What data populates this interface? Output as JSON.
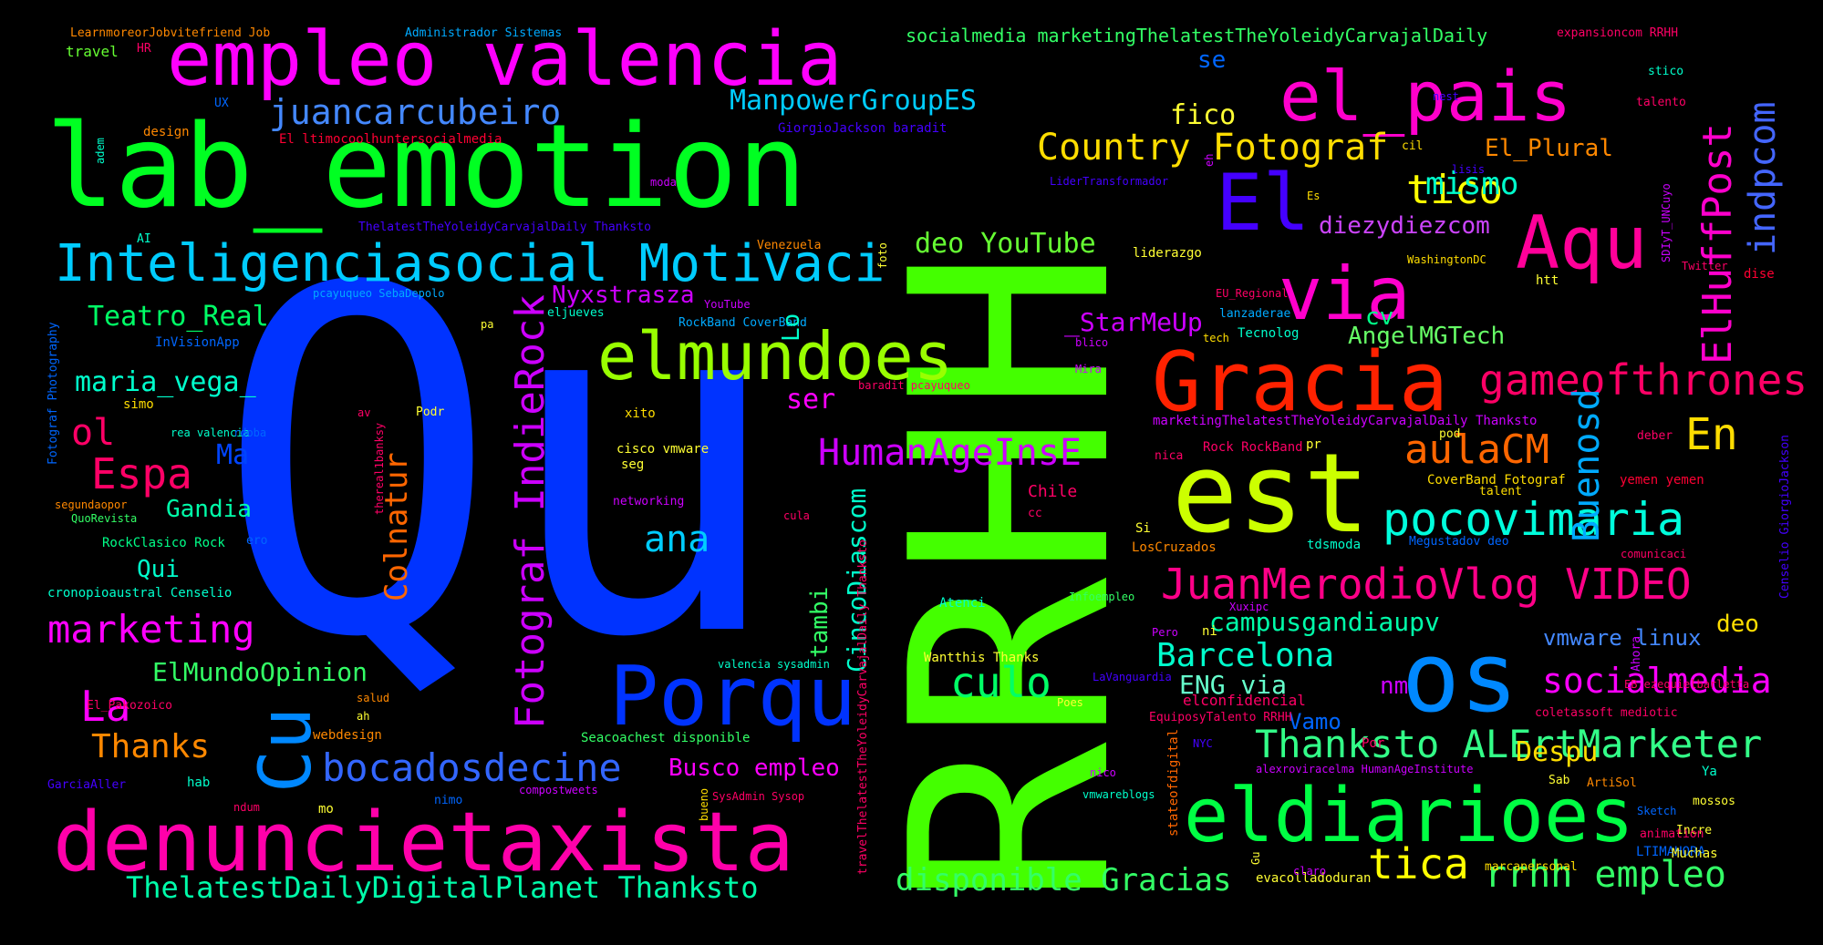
{
  "words": [
    {
      "t": "Qu",
      "c": "#0033ff"
    },
    {
      "t": "RRHH",
      "c": "#44ff00"
    },
    {
      "t": "lab_emotion",
      "c": "#00ff22"
    },
    {
      "t": "empleo valencia",
      "c": "#ff00ff"
    },
    {
      "t": "denuncietaxista",
      "c": "#ff00aa"
    },
    {
      "t": "Inteligenciasocial Motivaci",
      "c": "#00ccff"
    },
    {
      "t": "elmundoes",
      "c": "#99ff00"
    },
    {
      "t": "Porqu",
      "c": "#0033ff"
    },
    {
      "t": "juancarcubeiro",
      "c": "#4488ff"
    },
    {
      "t": "el_pais",
      "c": "#ff00cc"
    },
    {
      "t": "El",
      "c": "#4400ff"
    },
    {
      "t": "Aqu",
      "c": "#ff0099"
    },
    {
      "t": "via",
      "c": "#ff00cc"
    },
    {
      "t": "Gracia",
      "c": "#ff2200"
    },
    {
      "t": "est",
      "c": "#ccff00"
    },
    {
      "t": "os",
      "c": "#0088ff"
    },
    {
      "t": "eldiarioes",
      "c": "#00ff44"
    },
    {
      "t": "gameofthrones",
      "c": "#ff0066"
    },
    {
      "t": "pocovimaria",
      "c": "#00ffdd"
    },
    {
      "t": "JuanMerodioVlog VIDEO",
      "c": "#ff0088"
    },
    {
      "t": "aulaCM",
      "c": "#ff6600"
    },
    {
      "t": "En",
      "c": "#ffdd00"
    },
    {
      "t": "Thanksto ALErtMarketer",
      "c": "#33ff88"
    },
    {
      "t": "socialmedia",
      "c": "#ff00ff"
    },
    {
      "t": "Barcelona",
      "c": "#00ffcc"
    },
    {
      "t": "ENG via",
      "c": "#66ffcc"
    },
    {
      "t": "culo",
      "c": "#00ff66"
    },
    {
      "t": "disponible Gracias",
      "c": "#33ff66"
    },
    {
      "t": "tica",
      "c": "#ffff00"
    },
    {
      "t": "rrhh empleo",
      "c": "#33ff66"
    },
    {
      "t": "bocadosdecine",
      "c": "#3366ff"
    },
    {
      "t": "ThelatestDailyDigitalPlanet Thanksto",
      "c": "#00ffaa"
    },
    {
      "t": "marketing",
      "c": "#ff00ff"
    },
    {
      "t": "Espa",
      "c": "#ff0066"
    },
    {
      "t": "La",
      "c": "#ff00ff"
    },
    {
      "t": "Thanks",
      "c": "#ff8800"
    },
    {
      "t": "ana",
      "c": "#00ccff"
    },
    {
      "t": "HumanAgeInsE",
      "c": "#cc00ff"
    },
    {
      "t": "Country Fotograf",
      "c": "#ffdd00"
    },
    {
      "t": "ManpowerGroupES",
      "c": "#00ccff"
    },
    {
      "t": "tico",
      "c": "#ffff00"
    },
    {
      "t": "mismo",
      "c": "#00ffcc"
    },
    {
      "t": "deo YouTube",
      "c": "#66ff33"
    },
    {
      "t": "fico",
      "c": "#ffff33"
    },
    {
      "t": "El_Plural",
      "c": "#ff8800"
    },
    {
      "t": "diezydiezcom",
      "c": "#cc44ff"
    },
    {
      "t": "Teatro_Real",
      "c": "#00ff66"
    },
    {
      "t": "maria_vega_",
      "c": "#00ffcc"
    },
    {
      "t": "ol",
      "c": "#ff0066"
    },
    {
      "t": "Ma",
      "c": "#0044ff"
    },
    {
      "t": "Gandia",
      "c": "#00ffaa"
    },
    {
      "t": "Qui",
      "c": "#00ffcc"
    },
    {
      "t": "ElMundoOpinion",
      "c": "#33ff66"
    },
    {
      "t": "Busco empleo",
      "c": "#ff00ff"
    },
    {
      "t": "campusgandiaupv",
      "c": "#00ffaa"
    },
    {
      "t": "vmware linux",
      "c": "#4488ff"
    },
    {
      "t": "deo",
      "c": "#ffdd00"
    },
    {
      "t": "Despu",
      "c": "#ffdd00"
    },
    {
      "t": "AngelMGTech",
      "c": "#66ff66"
    },
    {
      "t": "ser",
      "c": "#ff00ff"
    },
    {
      "t": "_StarMeUp",
      "c": "#cc00ff"
    },
    {
      "t": "Nyxstrasza",
      "c": "#cc00ff"
    },
    {
      "t": "se",
      "c": "#0066ff"
    },
    {
      "t": "cv",
      "c": "#00ff88"
    },
    {
      "t": "nm",
      "c": "#cc00ff"
    },
    {
      "t": "Vamo",
      "c": "#0066ff"
    },
    {
      "t": "socialmedia marketingThelatestTheYoleidyCarvajalDaily",
      "c": "#33ff66"
    },
    {
      "t": "LearnmoreorJobvitefriend Job",
      "c": "#ff8800"
    },
    {
      "t": "Administrador Sistemas",
      "c": "#00aaff"
    },
    {
      "t": "expansioncom RRHH",
      "c": "#ff0066"
    },
    {
      "t": "travel",
      "c": "#66ff33"
    },
    {
      "t": "HR",
      "c": "#ff0066"
    },
    {
      "t": "UX",
      "c": "#0066ff"
    },
    {
      "t": "design",
      "c": "#ff8800"
    },
    {
      "t": "El ltimocoolhuntersocialmedia",
      "c": "#ff0033"
    },
    {
      "t": "GiorgioJackson baradit",
      "c": "#4400ff"
    },
    {
      "t": "AI",
      "c": "#00ffcc"
    },
    {
      "t": "ThelatestTheYoleidyCarvajalDaily Thanksto",
      "c": "#4400ff"
    },
    {
      "t": "Venezuela",
      "c": "#ff8800"
    },
    {
      "t": "LiderTransformador",
      "c": "#4400ff"
    },
    {
      "t": "moda",
      "c": "#cc00ff"
    },
    {
      "t": "nest",
      "c": "#4400ff"
    },
    {
      "t": "stico",
      "c": "#00ffcc"
    },
    {
      "t": "talento",
      "c": "#ff0066"
    },
    {
      "t": "cil",
      "c": "#ffdd00"
    },
    {
      "t": "lisis",
      "c": "#4400ff"
    },
    {
      "t": "Es",
      "c": "#ffdd00"
    },
    {
      "t": "liderazgo",
      "c": "#ffff33"
    },
    {
      "t": "WashingtonDC",
      "c": "#ffdd00"
    },
    {
      "t": "Twitter",
      "c": "#ff0066"
    },
    {
      "t": "dise",
      "c": "#ff0033"
    },
    {
      "t": "htt",
      "c": "#ffff33"
    },
    {
      "t": "EU_Regional",
      "c": "#ff0066"
    },
    {
      "t": "lanzaderae",
      "c": "#00aaff"
    },
    {
      "t": "tech",
      "c": "#ffdd00"
    },
    {
      "t": "Tecnolog",
      "c": "#00ffcc"
    },
    {
      "t": "blico",
      "c": "#cc00ff"
    },
    {
      "t": "Mira",
      "c": "#cc00ff"
    },
    {
      "t": "pcayuqueo SebaDepolo",
      "c": "#00aaff"
    },
    {
      "t": "InVisionApp",
      "c": "#0066ff"
    },
    {
      "t": "RockBand CoverBand",
      "c": "#00aaff"
    },
    {
      "t": "YouTube",
      "c": "#cc00ff"
    },
    {
      "t": "eljueves",
      "c": "#00ffcc"
    },
    {
      "t": "pa",
      "c": "#ffff33"
    },
    {
      "t": "baradit pcayuqueo",
      "c": "#ff0066"
    },
    {
      "t": "simo",
      "c": "#ffdd00"
    },
    {
      "t": "rea valencia",
      "c": "#00ffcc"
    },
    {
      "t": "rdoba",
      "c": "#0066ff"
    },
    {
      "t": "av",
      "c": "#ff0066"
    },
    {
      "t": "Podr",
      "c": "#ffff33"
    },
    {
      "t": "xito",
      "c": "#ffdd00"
    },
    {
      "t": "cisco vmware",
      "c": "#ffff33"
    },
    {
      "t": "seg",
      "c": "#ffff33"
    },
    {
      "t": "networking",
      "c": "#cc00ff"
    },
    {
      "t": "segundaopor",
      "c": "#ff8800"
    },
    {
      "t": "QuoRevista",
      "c": "#33ff66"
    },
    {
      "t": "RockClasico Rock",
      "c": "#00ff88"
    },
    {
      "t": "ero",
      "c": "#0066ff"
    },
    {
      "t": "cronopioaustral Censelio",
      "c": "#00ffcc"
    },
    {
      "t": "marketingThelatestTheYoleidyCarvajalDaily Thanksto",
      "c": "#cc00ff"
    },
    {
      "t": "Rock RockBand",
      "c": "#ff0066"
    },
    {
      "t": "nica",
      "c": "#ff0066"
    },
    {
      "t": "pr",
      "c": "#ffff33"
    },
    {
      "t": "deber",
      "c": "#ff0066"
    },
    {
      "t": "pod",
      "c": "#ffff33"
    },
    {
      "t": "CoverBand Fotograf",
      "c": "#ffdd00"
    },
    {
      "t": "talent",
      "c": "#ffdd00"
    },
    {
      "t": "yemen yemen",
      "c": "#ff0033"
    },
    {
      "t": "Chile",
      "c": "#ff0066"
    },
    {
      "t": "cc",
      "c": "#ff0066"
    },
    {
      "t": "cula",
      "c": "#ff0066"
    },
    {
      "t": "Si",
      "c": "#ffff33"
    },
    {
      "t": "LosCruzados",
      "c": "#ff8800"
    },
    {
      "t": "tdsmoda",
      "c": "#00ffcc"
    },
    {
      "t": "Megustadov deo",
      "c": "#0066ff"
    },
    {
      "t": "comunicaci",
      "c": "#ff0066"
    },
    {
      "t": "Atenci",
      "c": "#00ffcc"
    },
    {
      "t": "Infoempleo",
      "c": "#33ff66"
    },
    {
      "t": "Xuxipc",
      "c": "#cc00ff"
    },
    {
      "t": "valencia sysadmin",
      "c": "#00ffcc"
    },
    {
      "t": "Wantthis Thanks",
      "c": "#ffff33"
    },
    {
      "t": "Pero",
      "c": "#cc00ff"
    },
    {
      "t": "ni",
      "c": "#ffff33"
    },
    {
      "t": "EB ezequielbarletta",
      "c": "#ff0066"
    },
    {
      "t": "LaVanguardia",
      "c": "#4400ff"
    },
    {
      "t": "El_Pakozoico",
      "c": "#ff0066"
    },
    {
      "t": "salud",
      "c": "#ff8800"
    },
    {
      "t": "ah",
      "c": "#ffff33"
    },
    {
      "t": "webdesign",
      "c": "#ff8800"
    },
    {
      "t": "Seacoachest disponible",
      "c": "#33ff66"
    },
    {
      "t": "Poes",
      "c": "#ffff33"
    },
    {
      "t": "elconfidencial",
      "c": "#ff0066"
    },
    {
      "t": "EquiposyTalento RRHH",
      "c": "#ff0066"
    },
    {
      "t": "NYC",
      "c": "#4400ff"
    },
    {
      "t": "Por",
      "c": "#ff0066"
    },
    {
      "t": "coletassoft mediotic",
      "c": "#ff0066"
    },
    {
      "t": "alexroviracelma HumanAgeInstitute",
      "c": "#cc00ff"
    },
    {
      "t": "nico",
      "c": "#cc00ff"
    },
    {
      "t": "Sab",
      "c": "#ffff33"
    },
    {
      "t": "ArtiSol",
      "c": "#ff8800"
    },
    {
      "t": "Ya",
      "c": "#00ffcc"
    },
    {
      "t": "mossos",
      "c": "#ffff33"
    },
    {
      "t": "GarciaAller",
      "c": "#4400ff"
    },
    {
      "t": "hab",
      "c": "#00ffcc"
    },
    {
      "t": "ndum",
      "c": "#ff0066"
    },
    {
      "t": "mo",
      "c": "#ffff33"
    },
    {
      "t": "nimo",
      "c": "#0066ff"
    },
    {
      "t": "compostweets",
      "c": "#cc00ff"
    },
    {
      "t": "SysAdmin Sysop",
      "c": "#ff0066"
    },
    {
      "t": "vmwareblogs",
      "c": "#00ffcc"
    },
    {
      "t": "Incre",
      "c": "#ffff33"
    },
    {
      "t": "animation",
      "c": "#ff0066"
    },
    {
      "t": "LTIMAHORA",
      "c": "#0066ff"
    },
    {
      "t": "Muchas",
      "c": "#ffff33"
    },
    {
      "t": "evacolladoduran",
      "c": "#ffff33"
    },
    {
      "t": "marcapersonal",
      "c": "#ffdd00"
    },
    {
      "t": "claro",
      "c": "#cc00ff"
    },
    {
      "t": "Sketch",
      "c": "#0066ff"
    },
    {
      "t": "Cu",
      "c": "#0088ff"
    },
    {
      "t": "Fotograf IndieRock",
      "c": "#cc00ff"
    },
    {
      "t": "Colnatur",
      "c": "#ff6600"
    },
    {
      "t": "Lo",
      "c": "#00ffcc"
    },
    {
      "t": "tambi",
      "c": "#33ff66"
    },
    {
      "t": "CincoDiascom",
      "c": "#00ffcc"
    },
    {
      "t": "ElHuffPost",
      "c": "#ff00cc"
    },
    {
      "t": "indpcom",
      "c": "#4466ff"
    },
    {
      "t": "Buenosd",
      "c": "#00aaff"
    },
    {
      "t": "Fotograf Photography",
      "c": "#0066ff"
    },
    {
      "t": "thereal1banksy",
      "c": "#ff0066"
    },
    {
      "t": "foto",
      "c": "#ffff33"
    },
    {
      "t": "adem",
      "c": "#00ffcc"
    },
    {
      "t": "SDIyT_UNCuyo",
      "c": "#cc00ff"
    },
    {
      "t": "Censelio GiorgioJackson",
      "c": "#4400ff"
    },
    {
      "t": "travelThelatestTheYoleidyCarvajalDaily Thanksto",
      "c": "#ff0066"
    },
    {
      "t": "stateofdigital",
      "c": "#ff6600"
    },
    {
      "t": "bueno",
      "c": "#ffdd00"
    },
    {
      "t": "Ahora",
      "c": "#cc00ff"
    },
    {
      "t": "Gu",
      "c": "#ffff33"
    },
    {
      "t": "eh",
      "c": "#cc00ff"
    }
  ]
}
